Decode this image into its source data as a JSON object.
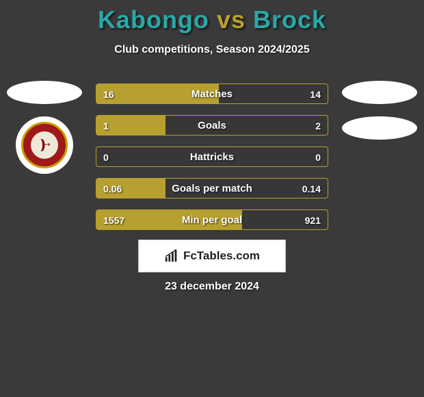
{
  "title": {
    "left_name": "Kabongo",
    "vs": "vs",
    "right_name": "Brock"
  },
  "subtitle": "Club competitions, Season 2024/2025",
  "colors": {
    "left": "#b8a030",
    "right": "#2aa8a8",
    "background": "#3a3a3a",
    "text": "#ffffff"
  },
  "stats": [
    {
      "label": "Matches",
      "left_value": "16",
      "right_value": "14",
      "left_pct": 53,
      "right_pct": 0
    },
    {
      "label": "Goals",
      "left_value": "1",
      "right_value": "2",
      "left_pct": 30,
      "right_pct": 0
    },
    {
      "label": "Hattricks",
      "left_value": "0",
      "right_value": "0",
      "left_pct": 0,
      "right_pct": 0
    },
    {
      "label": "Goals per match",
      "left_value": "0.06",
      "right_value": "0.14",
      "left_pct": 30,
      "right_pct": 0
    },
    {
      "label": "Min per goal",
      "left_value": "1557",
      "right_value": "921",
      "left_pct": 63,
      "right_pct": 0
    }
  ],
  "brand": {
    "name": "FcTables.com"
  },
  "date": "23 december 2024"
}
